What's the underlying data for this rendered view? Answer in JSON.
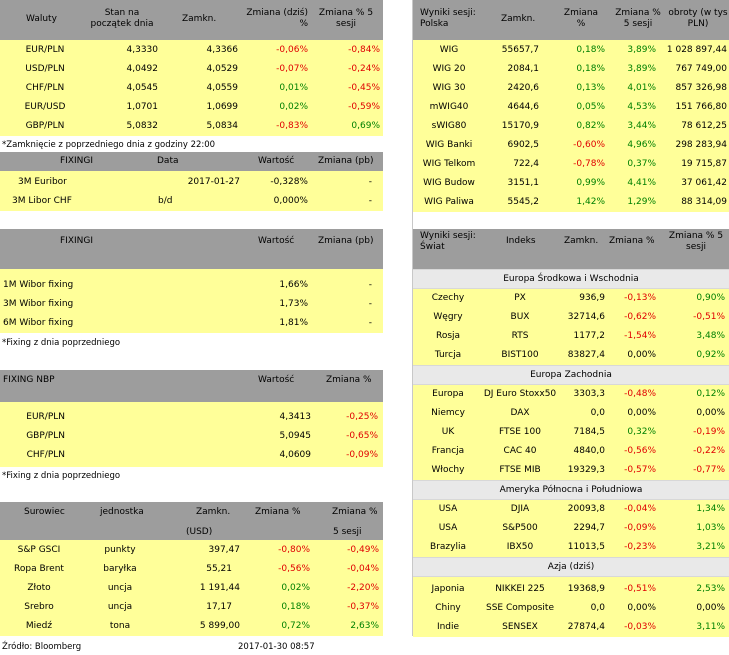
{
  "waluty": {
    "headers": [
      "Waluty",
      "Stan na\npoczątek dnia",
      "Zamkn.",
      "Zmiana (dziś)\n%",
      "Zmiana % 5\nsesji"
    ],
    "rows": [
      {
        "name": "EUR/PLN",
        "start": "4,3330",
        "close": "4,3366",
        "chg": "-0,06%",
        "chg5": "-0,84%"
      },
      {
        "name": "USD/PLN",
        "start": "4,0492",
        "close": "4,0529",
        "chg": "-0,07%",
        "chg5": "-0,24%"
      },
      {
        "name": "CHF/PLN",
        "start": "4,0545",
        "close": "4,0559",
        "chg": "0,01%",
        "chg5": "-0,45%"
      },
      {
        "name": "EUR/USD",
        "start": "1,0701",
        "close": "1,0699",
        "chg": "0,02%",
        "chg5": "-0,59%"
      },
      {
        "name": "GBP/PLN",
        "start": "5,0832",
        "close": "5,0834",
        "chg": "-0,83%",
        "chg5": "0,69%"
      }
    ],
    "note": "*Zamknięcie z poprzedniego dnia z godziny 22:00"
  },
  "libor": {
    "headers": [
      "FIXINGI",
      "Data",
      "Wartość",
      "Zmiana (pb)"
    ],
    "rows": [
      {
        "name": "3M Euribor",
        "date": "2017-01-27",
        "value": "-0,328%",
        "chg": "-"
      },
      {
        "name": "3M Libor CHF",
        "date": "b/d",
        "value": "0,000%",
        "chg": "-"
      }
    ]
  },
  "wibor": {
    "headers": [
      "FIXINGI",
      "Wartość",
      "Zmiana (pb)"
    ],
    "rows": [
      {
        "name": "1M Wibor fixing",
        "value": "1,66%",
        "chg": "-"
      },
      {
        "name": "3M Wibor fixing",
        "value": "1,73%",
        "chg": "-"
      },
      {
        "name": "6M Wibor fixing",
        "value": "1,81%",
        "chg": "-"
      }
    ],
    "note": "*Fixing z dnia poprzedniego"
  },
  "nbp": {
    "headers": [
      "FIXING NBP",
      "Wartość",
      "Zmiana %"
    ],
    "rows": [
      {
        "name": "EUR/PLN",
        "value": "4,3413",
        "chg": "-0,25%"
      },
      {
        "name": "GBP/PLN",
        "value": "5,0945",
        "chg": "-0,65%"
      },
      {
        "name": "CHF/PLN",
        "value": "4,0609",
        "chg": "-0,09%"
      }
    ],
    "note": "*Fixing z dnia poprzedniego"
  },
  "surowce": {
    "headers": [
      "Surowiec",
      "jednostka",
      "Zamkn.",
      "Zmiana %",
      "Zmiana %"
    ],
    "subheaders": [
      "(USD)",
      "5 sesji"
    ],
    "rows": [
      {
        "name": "S&P GSCI",
        "unit": "punkty",
        "close": "397,47",
        "chg": "-0,80%",
        "chg5": "-0,49%"
      },
      {
        "name": "Ropa Brent",
        "unit": "baryłka",
        "close": "55,21",
        "chg": "-0,56%",
        "chg5": "-0,04%"
      },
      {
        "name": "Złoto",
        "unit": "uncja",
        "close": "1 191,44",
        "chg": "0,02%",
        "chg5": "-2,20%"
      },
      {
        "name": "Srebro",
        "unit": "uncja",
        "close": "17,17",
        "chg": "0,18%",
        "chg5": "-0,37%"
      },
      {
        "name": "Miedź",
        "unit": "tona",
        "close": "5 899,00",
        "chg": "0,72%",
        "chg5": "2,63%"
      }
    ]
  },
  "footer": {
    "source": "Źródło: Bloomberg",
    "timestamp": "2017-01-30 08:57"
  },
  "wyniki_polska": {
    "headers": [
      "Wyniki sesji:\nPolska",
      "Zamkn.",
      "Zmiana\n%",
      "Zmiana %\n5 sesji",
      "obroty (w tys\nPLN)"
    ],
    "rows": [
      {
        "name": "WIG",
        "close": "55657,7",
        "chg": "0,18%",
        "chg5": "3,89%",
        "vol": "1 028 897,44"
      },
      {
        "name": "WIG 20",
        "close": "2084,1",
        "chg": "0,18%",
        "chg5": "3,89%",
        "vol": "767 749,00"
      },
      {
        "name": "WIG 30",
        "close": "2420,6",
        "chg": "0,13%",
        "chg5": "4,01%",
        "vol": "857 326,98"
      },
      {
        "name": "mWIG40",
        "close": "4644,6",
        "chg": "0,05%",
        "chg5": "4,53%",
        "vol": "151 766,80"
      },
      {
        "name": "sWIG80",
        "close": "15170,9",
        "chg": "0,82%",
        "chg5": "3,44%",
        "vol": "78 612,25"
      },
      {
        "name": "WIG Banki",
        "close": "6902,5",
        "chg": "-0,60%",
        "chg5": "4,96%",
        "vol": "298 283,94"
      },
      {
        "name": "WIG Telkom",
        "close": "722,4",
        "chg": "-0,78%",
        "chg5": "0,37%",
        "vol": "19 715,87"
      },
      {
        "name": "WIG Budow",
        "close": "3151,1",
        "chg": "0,99%",
        "chg5": "4,41%",
        "vol": "37 061,42"
      },
      {
        "name": "WIG Paliwa",
        "close": "5545,2",
        "chg": "1,42%",
        "chg5": "1,29%",
        "vol": "88 314,09"
      }
    ]
  },
  "wyniki_swiat": {
    "headers": [
      "Wyniki sesji:\nŚwiat",
      "Indeks",
      "Zamkn.",
      "Zmiana %",
      "Zmiana % 5\nsesji"
    ],
    "sections": [
      {
        "title": "Europa Środkowa i Wschodnia",
        "rows": [
          {
            "country": "Czechy",
            "index": "PX",
            "close": "936,9",
            "chg": "-0,13%",
            "chg5": "0,90%"
          },
          {
            "country": "Węgry",
            "index": "BUX",
            "close": "32714,6",
            "chg": "-0,62%",
            "chg5": "-0,51%"
          },
          {
            "country": "Rosja",
            "index": "RTS",
            "close": "1177,2",
            "chg": "-1,54%",
            "chg5": "3,48%"
          },
          {
            "country": "Turcja",
            "index": "BIST100",
            "close": "83827,4",
            "chg": "0,00%",
            "chg5": "0,92%"
          }
        ]
      },
      {
        "title": "Europa Zachodnia",
        "rows": [
          {
            "country": "Europa",
            "index": "DJ Euro Stoxx50",
            "close": "3303,3",
            "chg": "-0,48%",
            "chg5": "0,12%"
          },
          {
            "country": "Niemcy",
            "index": "DAX",
            "close": "0,0",
            "chg": "0,00%",
            "chg5": "0,00%"
          },
          {
            "country": "UK",
            "index": "FTSE 100",
            "close": "7184,5",
            "chg": "0,32%",
            "chg5": "-0,19%"
          },
          {
            "country": "Francja",
            "index": "CAC 40",
            "close": "4840,0",
            "chg": "-0,56%",
            "chg5": "-0,22%"
          },
          {
            "country": "Włochy",
            "index": "FTSE MIB",
            "close": "19329,3",
            "chg": "-0,57%",
            "chg5": "-0,77%"
          }
        ]
      },
      {
        "title": "Ameryka Północna i Południowa",
        "rows": [
          {
            "country": "USA",
            "index": "DJIA",
            "close": "20093,8",
            "chg": "-0,04%",
            "chg5": "1,34%"
          },
          {
            "country": "USA",
            "index": "S&P500",
            "close": "2294,7",
            "chg": "-0,09%",
            "chg5": "1,03%"
          },
          {
            "country": "Brazylia",
            "index": "IBX50",
            "close": "11013,5",
            "chg": "-0,23%",
            "chg5": "3,21%"
          }
        ]
      },
      {
        "title": "Azja (dziś)",
        "rows": [
          {
            "country": "Japonia",
            "index": "NIKKEI 225",
            "close": "19368,9",
            "chg": "-0,51%",
            "chg5": "2,53%"
          },
          {
            "country": "Chiny",
            "index": "SSE Composite",
            "close": "0,0",
            "chg": "0,00%",
            "chg5": "0,00%"
          },
          {
            "country": "Indie",
            "index": "SENSEX",
            "close": "27874,4",
            "chg": "-0,03%",
            "chg5": "3,11%"
          }
        ]
      }
    ]
  },
  "colors": {
    "header": "#9d9d9d",
    "row": "#ffff99",
    "negative": "#e00000",
    "positive": "#008000"
  }
}
